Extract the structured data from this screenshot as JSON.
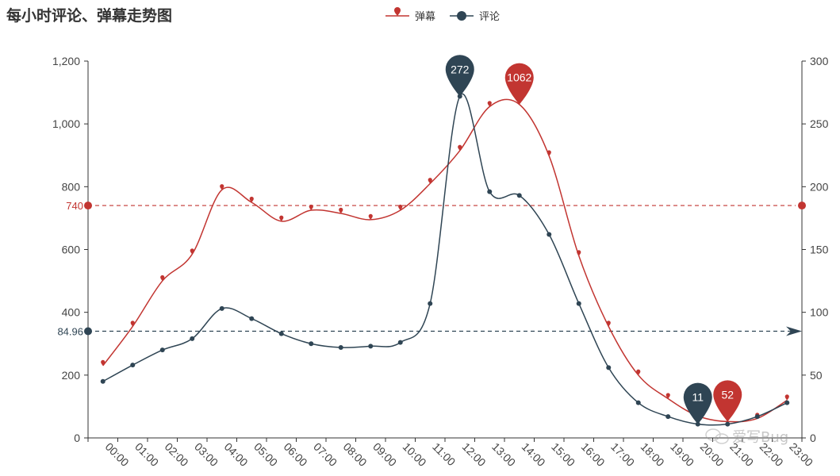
{
  "chart_data": {
    "type": "line",
    "title": "每小时评论、弹幕走势图",
    "categories": [
      "00:00",
      "01:00",
      "02:00",
      "03:00",
      "04:00",
      "05:00",
      "06:00",
      "07:00",
      "08:00",
      "09:00",
      "10:00",
      "11:00",
      "12:00",
      "13:00",
      "14:00",
      "15:00",
      "16:00",
      "17:00",
      "18:00",
      "19:00",
      "20:00",
      "21:00",
      "22:00",
      "23:00"
    ],
    "series": [
      {
        "name": "弹幕",
        "axis": "left",
        "color": "#c23531",
        "symbol": "pin",
        "values": [
          230,
          355,
          500,
          585,
          790,
          750,
          690,
          725,
          715,
          695,
          725,
          810,
          915,
          1055,
          1062,
          898,
          580,
          355,
          200,
          125,
          70,
          52,
          62,
          120
        ]
      },
      {
        "name": "评论",
        "axis": "right",
        "color": "#2f4554",
        "symbol": "circle",
        "values": [
          45,
          58,
          70,
          79,
          103,
          95,
          83,
          75,
          72,
          73,
          76,
          107,
          272,
          196,
          193,
          162,
          107,
          56,
          28,
          17,
          11,
          11,
          17,
          28
        ]
      }
    ],
    "y_left": {
      "min": 0,
      "max": 1200,
      "ticks": [
        "0",
        "200",
        "400",
        "600",
        "800",
        "1,000",
        "1,200"
      ]
    },
    "y_right": {
      "min": 0,
      "max": 300,
      "ticks": [
        "0",
        "50",
        "100",
        "150",
        "200",
        "250",
        "300"
      ]
    },
    "mark_points": [
      {
        "series": "评论",
        "label": "272",
        "index": 12,
        "value": 272
      },
      {
        "series": "弹幕",
        "label": "1062",
        "index": 14,
        "value": 1062
      },
      {
        "series": "评论",
        "label": "11",
        "index": 20,
        "value": 11
      },
      {
        "series": "弹幕",
        "label": "52",
        "index": 21,
        "value": 52
      }
    ],
    "mark_lines": [
      {
        "series": "弹幕",
        "label": "740",
        "value": 740
      },
      {
        "series": "评论",
        "label": "84.96",
        "value": 84.96
      }
    ],
    "legend": {
      "position": "top-center",
      "items": [
        "弹幕",
        "评论"
      ]
    },
    "grid": false
  },
  "watermark": "爱写Bug"
}
